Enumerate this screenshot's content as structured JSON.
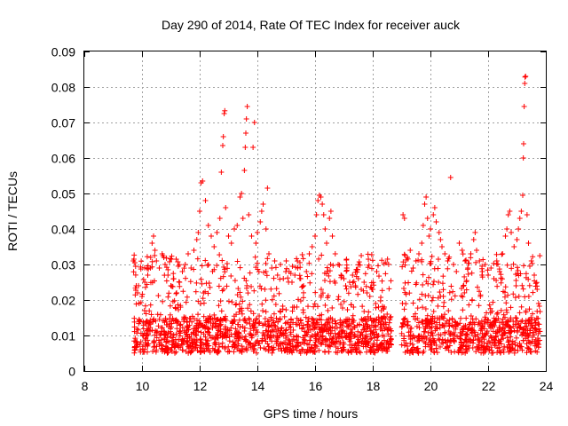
{
  "chart_data": {
    "type": "scatter",
    "title": "Day 290 of 2014, Rate Of TEC Index for receiver auck",
    "xlabel": "GPS time / hours",
    "ylabel": "ROTI / TECUs",
    "xlim": [
      8,
      24
    ],
    "ylim": [
      0,
      0.09
    ],
    "grid": true,
    "marker": "+",
    "marker_color": "#ff0000",
    "x_ticks": [
      8,
      10,
      12,
      14,
      16,
      18,
      20,
      22,
      24
    ],
    "x_tick_labels": [
      "8",
      "10",
      "12",
      "14",
      "16",
      "18",
      "20",
      "22",
      "24"
    ],
    "y_ticks": [
      0,
      0.01,
      0.02,
      0.03,
      0.04,
      0.05,
      0.06,
      0.07,
      0.08,
      0.09
    ],
    "y_tick_labels": [
      "0",
      "0.01",
      "0.02",
      "0.03",
      "0.04",
      "0.05",
      "0.06",
      "0.07",
      "0.08",
      "0.09"
    ],
    "series": [
      {
        "name": "auck",
        "data_gap_hours": [
          18.65,
          19.0
        ],
        "points": [
          [
            9.7,
            0.031
          ],
          [
            9.75,
            0.0305
          ],
          [
            9.72,
            0.0315
          ],
          [
            9.8,
            0.024
          ],
          [
            9.85,
            0.022
          ],
          [
            9.9,
            0.019
          ],
          [
            10.0,
            0.021
          ],
          [
            10.1,
            0.025
          ],
          [
            10.2,
            0.027
          ],
          [
            10.3,
            0.032
          ],
          [
            10.35,
            0.036
          ],
          [
            10.4,
            0.038
          ],
          [
            10.45,
            0.034
          ],
          [
            10.5,
            0.031
          ],
          [
            10.6,
            0.029
          ],
          [
            10.7,
            0.033
          ],
          [
            10.8,
            0.03
          ],
          [
            10.9,
            0.027
          ],
          [
            11.0,
            0.024
          ],
          [
            11.1,
            0.026
          ],
          [
            11.2,
            0.022
          ],
          [
            11.3,
            0.025
          ],
          [
            11.4,
            0.028
          ],
          [
            11.5,
            0.03
          ],
          [
            11.6,
            0.033
          ],
          [
            11.7,
            0.029
          ],
          [
            11.8,
            0.034
          ],
          [
            11.9,
            0.037
          ],
          [
            11.95,
            0.039
          ],
          [
            12.0,
            0.045
          ],
          [
            12.05,
            0.053
          ],
          [
            12.1,
            0.0535
          ],
          [
            12.2,
            0.048
          ],
          [
            12.3,
            0.041
          ],
          [
            12.4,
            0.038
          ],
          [
            12.5,
            0.035
          ],
          [
            12.6,
            0.039
          ],
          [
            12.7,
            0.043
          ],
          [
            12.75,
            0.056
          ],
          [
            12.8,
            0.0635
          ],
          [
            12.82,
            0.066
          ],
          [
            12.85,
            0.0725
          ],
          [
            12.87,
            0.0733
          ],
          [
            12.9,
            0.046
          ],
          [
            13.0,
            0.038
          ],
          [
            13.1,
            0.036
          ],
          [
            13.2,
            0.04
          ],
          [
            13.3,
            0.041
          ],
          [
            13.4,
            0.049
          ],
          [
            13.45,
            0.05
          ],
          [
            13.5,
            0.043
          ],
          [
            13.55,
            0.0565
          ],
          [
            13.58,
            0.063
          ],
          [
            13.6,
            0.067
          ],
          [
            13.62,
            0.071
          ],
          [
            13.65,
            0.0745
          ],
          [
            13.7,
            0.044
          ],
          [
            13.8,
            0.038
          ],
          [
            13.85,
            0.063
          ],
          [
            13.9,
            0.07
          ],
          [
            13.95,
            0.036
          ],
          [
            14.0,
            0.039
          ],
          [
            14.1,
            0.042
          ],
          [
            14.15,
            0.045
          ],
          [
            14.2,
            0.047
          ],
          [
            14.3,
            0.04
          ],
          [
            14.35,
            0.0515
          ],
          [
            14.4,
            0.033
          ],
          [
            14.5,
            0.029
          ],
          [
            14.6,
            0.031
          ],
          [
            14.7,
            0.027
          ],
          [
            14.8,
            0.03
          ],
          [
            14.9,
            0.026
          ],
          [
            15.0,
            0.031
          ],
          [
            15.1,
            0.028
          ],
          [
            15.2,
            0.025
          ],
          [
            15.3,
            0.027
          ],
          [
            15.4,
            0.029
          ],
          [
            15.5,
            0.026
          ],
          [
            15.6,
            0.024
          ],
          [
            15.7,
            0.028
          ],
          [
            15.8,
            0.033
          ],
          [
            15.9,
            0.035
          ],
          [
            16.0,
            0.038
          ],
          [
            16.05,
            0.044
          ],
          [
            16.1,
            0.048
          ],
          [
            16.15,
            0.0495
          ],
          [
            16.2,
            0.049
          ],
          [
            16.25,
            0.047
          ],
          [
            16.3,
            0.044
          ],
          [
            16.35,
            0.04
          ],
          [
            16.4,
            0.036
          ],
          [
            16.5,
            0.043
          ],
          [
            16.55,
            0.045
          ],
          [
            16.6,
            0.038
          ],
          [
            16.7,
            0.033
          ],
          [
            16.8,
            0.03
          ],
          [
            16.9,
            0.027
          ],
          [
            17.0,
            0.026
          ],
          [
            17.1,
            0.029
          ],
          [
            17.2,
            0.025
          ],
          [
            17.3,
            0.027
          ],
          [
            17.4,
            0.024
          ],
          [
            17.5,
            0.026
          ],
          [
            17.6,
            0.023
          ],
          [
            17.7,
            0.025
          ],
          [
            17.8,
            0.022
          ],
          [
            17.9,
            0.021
          ],
          [
            18.0,
            0.023
          ],
          [
            18.1,
            0.019
          ],
          [
            18.2,
            0.018
          ],
          [
            18.3,
            0.017
          ],
          [
            18.4,
            0.018
          ],
          [
            18.5,
            0.016
          ],
          [
            18.6,
            0.015
          ],
          [
            19.05,
            0.044
          ],
          [
            19.1,
            0.043
          ],
          [
            19.2,
            0.032
          ],
          [
            19.3,
            0.034
          ],
          [
            19.4,
            0.029
          ],
          [
            19.5,
            0.031
          ],
          [
            19.6,
            0.033
          ],
          [
            19.7,
            0.036
          ],
          [
            19.75,
            0.041
          ],
          [
            19.8,
            0.047
          ],
          [
            19.85,
            0.049
          ],
          [
            19.9,
            0.043
          ],
          [
            19.95,
            0.038
          ],
          [
            20.0,
            0.04
          ],
          [
            20.1,
            0.044
          ],
          [
            20.15,
            0.046
          ],
          [
            20.2,
            0.042
          ],
          [
            20.3,
            0.039
          ],
          [
            20.35,
            0.037
          ],
          [
            20.4,
            0.035
          ],
          [
            20.5,
            0.033
          ],
          [
            20.6,
            0.031
          ],
          [
            20.7,
            0.0545
          ],
          [
            20.8,
            0.03
          ],
          [
            20.9,
            0.028
          ],
          [
            21.0,
            0.036
          ],
          [
            21.1,
            0.034
          ],
          [
            21.2,
            0.031
          ],
          [
            21.3,
            0.029
          ],
          [
            21.4,
            0.033
          ],
          [
            21.5,
            0.037
          ],
          [
            21.55,
            0.039
          ],
          [
            21.6,
            0.034
          ],
          [
            21.7,
            0.031
          ],
          [
            21.8,
            0.028
          ],
          [
            21.9,
            0.03
          ],
          [
            22.0,
            0.027
          ],
          [
            22.1,
            0.029
          ],
          [
            22.2,
            0.026
          ],
          [
            22.3,
            0.031
          ],
          [
            22.4,
            0.028
          ],
          [
            22.5,
            0.033
          ],
          [
            22.6,
            0.038
          ],
          [
            22.65,
            0.04
          ],
          [
            22.7,
            0.044
          ],
          [
            22.75,
            0.045
          ],
          [
            22.8,
            0.039
          ],
          [
            22.9,
            0.035
          ],
          [
            23.0,
            0.037
          ],
          [
            23.05,
            0.04
          ],
          [
            23.1,
            0.043
          ],
          [
            23.15,
            0.045
          ],
          [
            23.2,
            0.0495
          ],
          [
            23.22,
            0.06
          ],
          [
            23.23,
            0.064
          ],
          [
            23.25,
            0.0745
          ],
          [
            23.27,
            0.081
          ],
          [
            23.28,
            0.0828
          ],
          [
            23.3,
            0.083
          ],
          [
            23.35,
            0.044
          ],
          [
            23.4,
            0.036
          ],
          [
            23.5,
            0.031
          ],
          [
            23.6,
            0.027
          ],
          [
            23.7,
            0.023
          ],
          [
            23.75,
            0.019
          ]
        ],
        "dense_band": {
          "description": "dense cluster of samples between about 0.005 and 0.025 TECU across each observed segment",
          "segments": [
            [
              9.7,
              18.65
            ],
            [
              19.0,
              23.8
            ]
          ],
          "min": 0.005,
          "typical": 0.011,
          "max": 0.025
        }
      }
    ]
  }
}
